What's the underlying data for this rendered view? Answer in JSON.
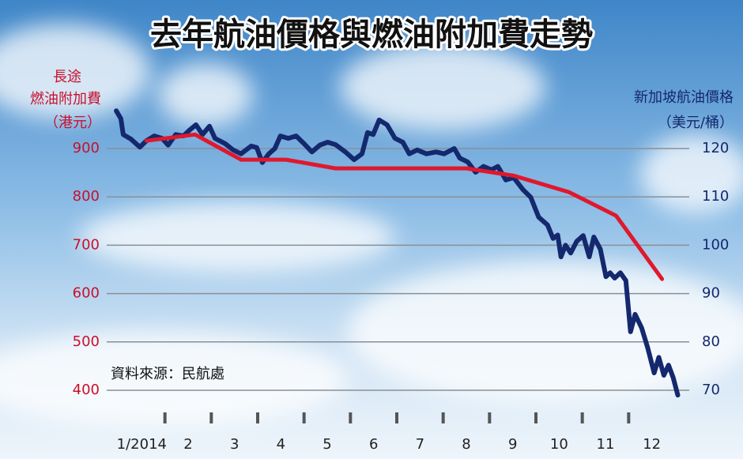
{
  "chart_data": {
    "type": "line",
    "title": "去年航油價格與燃油附加費走勢",
    "ylabel": [
      "長途",
      "燃油附加費",
      "（港元）"
    ],
    "y2label": [
      "新加坡航油價格",
      "（美元/桶）"
    ],
    "source": "資料來源：民航處",
    "categories": [
      "1/2014",
      "2",
      "3",
      "4",
      "5",
      "6",
      "7",
      "8",
      "9",
      "10",
      "11",
      "12"
    ],
    "xlim": [
      1,
      13
    ],
    "xticks": [
      2,
      3,
      4,
      5,
      6,
      7,
      8,
      9,
      10,
      11,
      12
    ],
    "ylim": [
      375,
      1000
    ],
    "yticks": [
      400,
      500,
      600,
      700,
      800,
      900
    ],
    "y2lim": [
      67.5,
      130
    ],
    "y2ticks": [
      70,
      80,
      90,
      100,
      110,
      120
    ],
    "grid": true,
    "series": [
      {
        "name": "燃油附加費",
        "color": "#e0182d",
        "axis": "y",
        "x": [
          1.6,
          2.65,
          3.64,
          4.61,
          5.68,
          8.5,
          9.52,
          10.71,
          11.73,
          12.72
        ],
        "values": [
          916,
          929,
          877,
          877,
          859,
          859,
          844,
          810,
          761,
          630
        ]
      },
      {
        "name": "新加坡航油價格",
        "color": "#14286e",
        "axis": "y2",
        "x": [
          0.95,
          1.05,
          1.1,
          1.26,
          1.46,
          1.6,
          1.77,
          1.94,
          2.07,
          2.23,
          2.4,
          2.53,
          2.67,
          2.81,
          2.96,
          3.08,
          3.3,
          3.47,
          3.64,
          3.86,
          3.98,
          4.1,
          4.24,
          4.37,
          4.49,
          4.66,
          4.83,
          5.0,
          5.17,
          5.34,
          5.51,
          5.68,
          5.89,
          6.08,
          6.25,
          6.37,
          6.49,
          6.62,
          6.79,
          6.96,
          7.13,
          7.27,
          7.44,
          7.64,
          7.85,
          8.02,
          8.24,
          8.36,
          8.53,
          8.7,
          8.87,
          9.04,
          9.18,
          9.35,
          9.52,
          9.72,
          9.89,
          10.06,
          10.25,
          10.37,
          10.47,
          10.54,
          10.64,
          10.75,
          10.88,
          11.02,
          11.15,
          11.25,
          11.39,
          11.51,
          11.6,
          11.7,
          11.82,
          11.94,
          12.04,
          12.14,
          12.28,
          12.41,
          12.55,
          12.65,
          12.76,
          12.86,
          12.96,
          13.06
        ],
        "values": [
          127.8,
          126.2,
          122.9,
          122.0,
          120.3,
          121.6,
          122.6,
          122.1,
          120.7,
          122.9,
          122.6,
          123.8,
          124.9,
          122.9,
          124.6,
          122.1,
          121.0,
          119.7,
          118.9,
          120.5,
          120.2,
          117.1,
          118.9,
          120.0,
          122.6,
          122.1,
          122.6,
          121.0,
          119.3,
          120.7,
          121.3,
          120.8,
          119.3,
          117.7,
          118.9,
          123.3,
          122.9,
          125.9,
          124.9,
          122.1,
          121.3,
          118.9,
          119.7,
          118.9,
          119.3,
          118.9,
          120.0,
          118.0,
          117.2,
          115.1,
          116.3,
          115.6,
          116.3,
          113.5,
          114.0,
          111.5,
          109.9,
          105.8,
          104.2,
          101.4,
          102.1,
          97.6,
          100.0,
          98.4,
          100.8,
          102.0,
          97.6,
          101.7,
          99.2,
          93.5,
          94.3,
          93.2,
          94.3,
          92.7,
          82.1,
          85.7,
          82.9,
          78.8,
          73.6,
          76.8,
          73.1,
          75.2,
          72.6,
          69.0
        ]
      }
    ]
  }
}
